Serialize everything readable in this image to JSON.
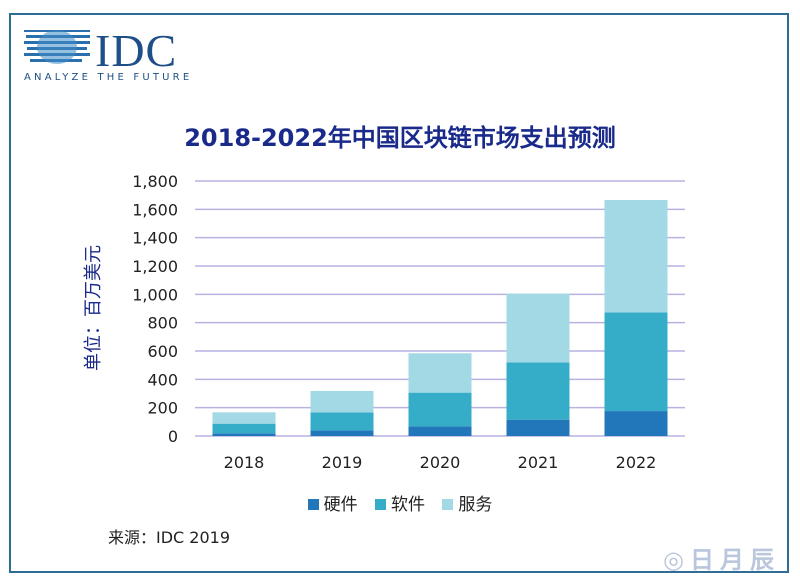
{
  "logo": {
    "name": "IDC",
    "tagline": "ANALYZE THE FUTURE"
  },
  "watermark": "日月辰",
  "source": "来源：IDC 2019",
  "colors": {
    "hardware": "#2277bb",
    "software": "#36adc8",
    "services": "#a3d9e5",
    "grid": "#b6b3e0",
    "title": "#1a2a8a"
  },
  "chart_data": {
    "type": "bar",
    "stacked": true,
    "title": "2018-2022年中国区块链市场支出预测",
    "xlabel": "",
    "ylabel": "单位：百万美元",
    "ylim": [
      0,
      1800
    ],
    "yticks": [
      0,
      200,
      400,
      600,
      800,
      1000,
      1200,
      1400,
      1600,
      1800
    ],
    "ytick_labels": [
      "0",
      "200",
      "400",
      "600",
      "800",
      "1,000",
      "1,200",
      "1,400",
      "1,600",
      "1,800"
    ],
    "grid": true,
    "legend_position": "bottom",
    "categories": [
      "2018",
      "2019",
      "2020",
      "2021",
      "2022"
    ],
    "series": [
      {
        "name": "硬件",
        "values": [
          19,
          40,
          68,
          115,
          176
        ]
      },
      {
        "name": "软件",
        "values": [
          68,
          127,
          238,
          405,
          697
        ]
      },
      {
        "name": "服务",
        "values": [
          80,
          151,
          278,
          485,
          793
        ]
      }
    ]
  }
}
